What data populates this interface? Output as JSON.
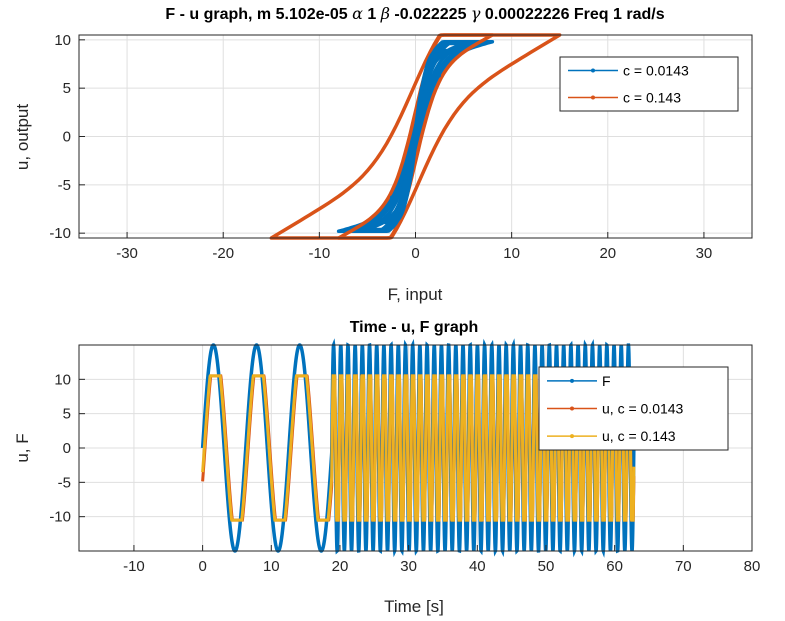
{
  "chart_data": [
    {
      "type": "line",
      "title_parts": [
        "F - u graph, m 5.102e-05 ",
        "α",
        " 1 ",
        "β",
        " -0.022225 ",
        "γ",
        " 0.00022226 Freq 1 rad/s"
      ],
      "xlabel": "F, input",
      "ylabel": "u, output",
      "xlim": [
        -35,
        35
      ],
      "ylim": [
        -10.5,
        10.5
      ],
      "xticks": [
        -30,
        -20,
        -10,
        0,
        10,
        20,
        30
      ],
      "yticks": [
        -10,
        -5,
        0,
        5,
        10
      ],
      "grid": true,
      "legend_position": "top-right",
      "series": [
        {
          "name": "c = 0.0143",
          "color": "#0072BD",
          "F_amplitudes": [
            6,
            7,
            8
          ],
          "u_amplitude": 9.8,
          "loop_offset": 1.2
        },
        {
          "name": "c = 0.143",
          "color": "#D95319",
          "F_amplitudes": [
            8,
            15
          ],
          "u_amplitude": 10.5,
          "loop_offset": 2.6
        }
      ]
    },
    {
      "type": "line",
      "title": "Time - u, F graph",
      "xlabel": "Time [s]",
      "ylabel": "u, F",
      "xlim": [
        -18,
        80
      ],
      "ylim": [
        -15,
        15
      ],
      "xticks": [
        -10,
        0,
        10,
        20,
        30,
        40,
        50,
        60,
        70,
        80
      ],
      "yticks": [
        -10,
        -5,
        0,
        5,
        10
      ],
      "grid": true,
      "legend_position": "top-right",
      "time_range": [
        0,
        62.8
      ],
      "series": [
        {
          "name": "F",
          "color": "#0072BD",
          "amplitude": 15
        },
        {
          "name": "u, c = 0.0143",
          "color": "#D95319",
          "amplitude": 10.5
        },
        {
          "name": "u, c = 0.143",
          "color": "#EDB120",
          "amplitude": 10.5
        }
      ]
    }
  ]
}
